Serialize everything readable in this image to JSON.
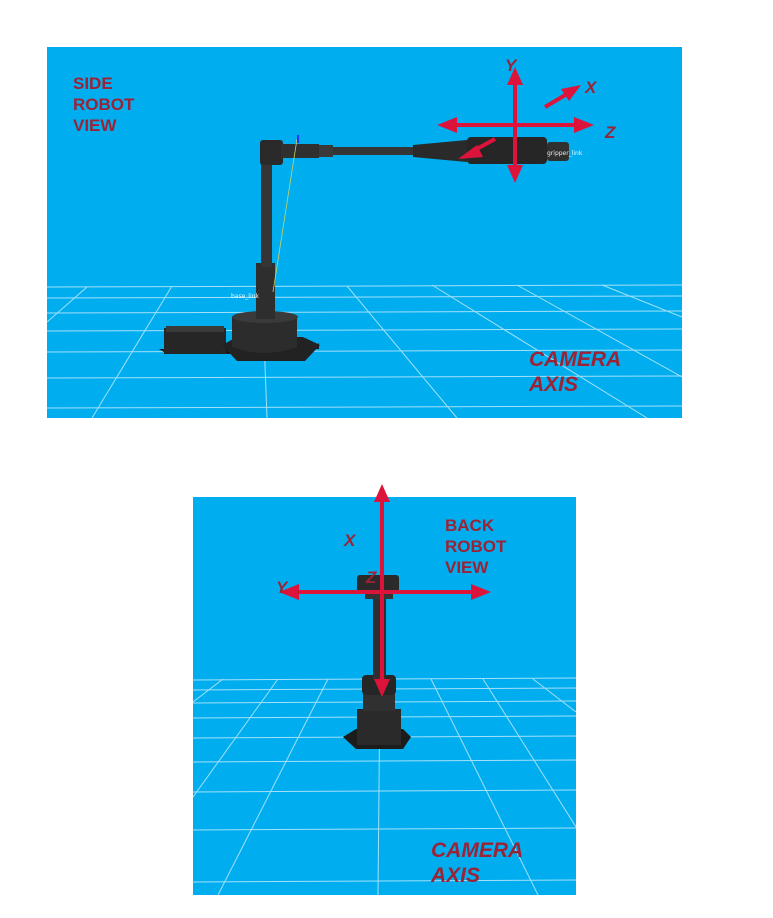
{
  "side_view": {
    "title_lines": [
      "SIDE",
      "ROBOT",
      "VIEW"
    ],
    "camera_axis_lines": [
      "CAMERA",
      "AXIS"
    ],
    "axes": {
      "x": "X",
      "y": "Y",
      "z": "Z"
    },
    "frame_labels": {
      "base": "base_link",
      "gripper": "gripper_link"
    }
  },
  "back_view": {
    "title_lines": [
      "BACK",
      "ROBOT",
      "VIEW"
    ],
    "camera_axis_lines": [
      "CAMERA",
      "AXIS"
    ],
    "axes": {
      "x": "X",
      "y": "Y",
      "z": "Z"
    }
  },
  "colors": {
    "background": "#00aeef",
    "arrow": "#dc143c",
    "label": "#9b2335",
    "robot": "#2b2b2b",
    "grid": "#bfe9fb"
  }
}
